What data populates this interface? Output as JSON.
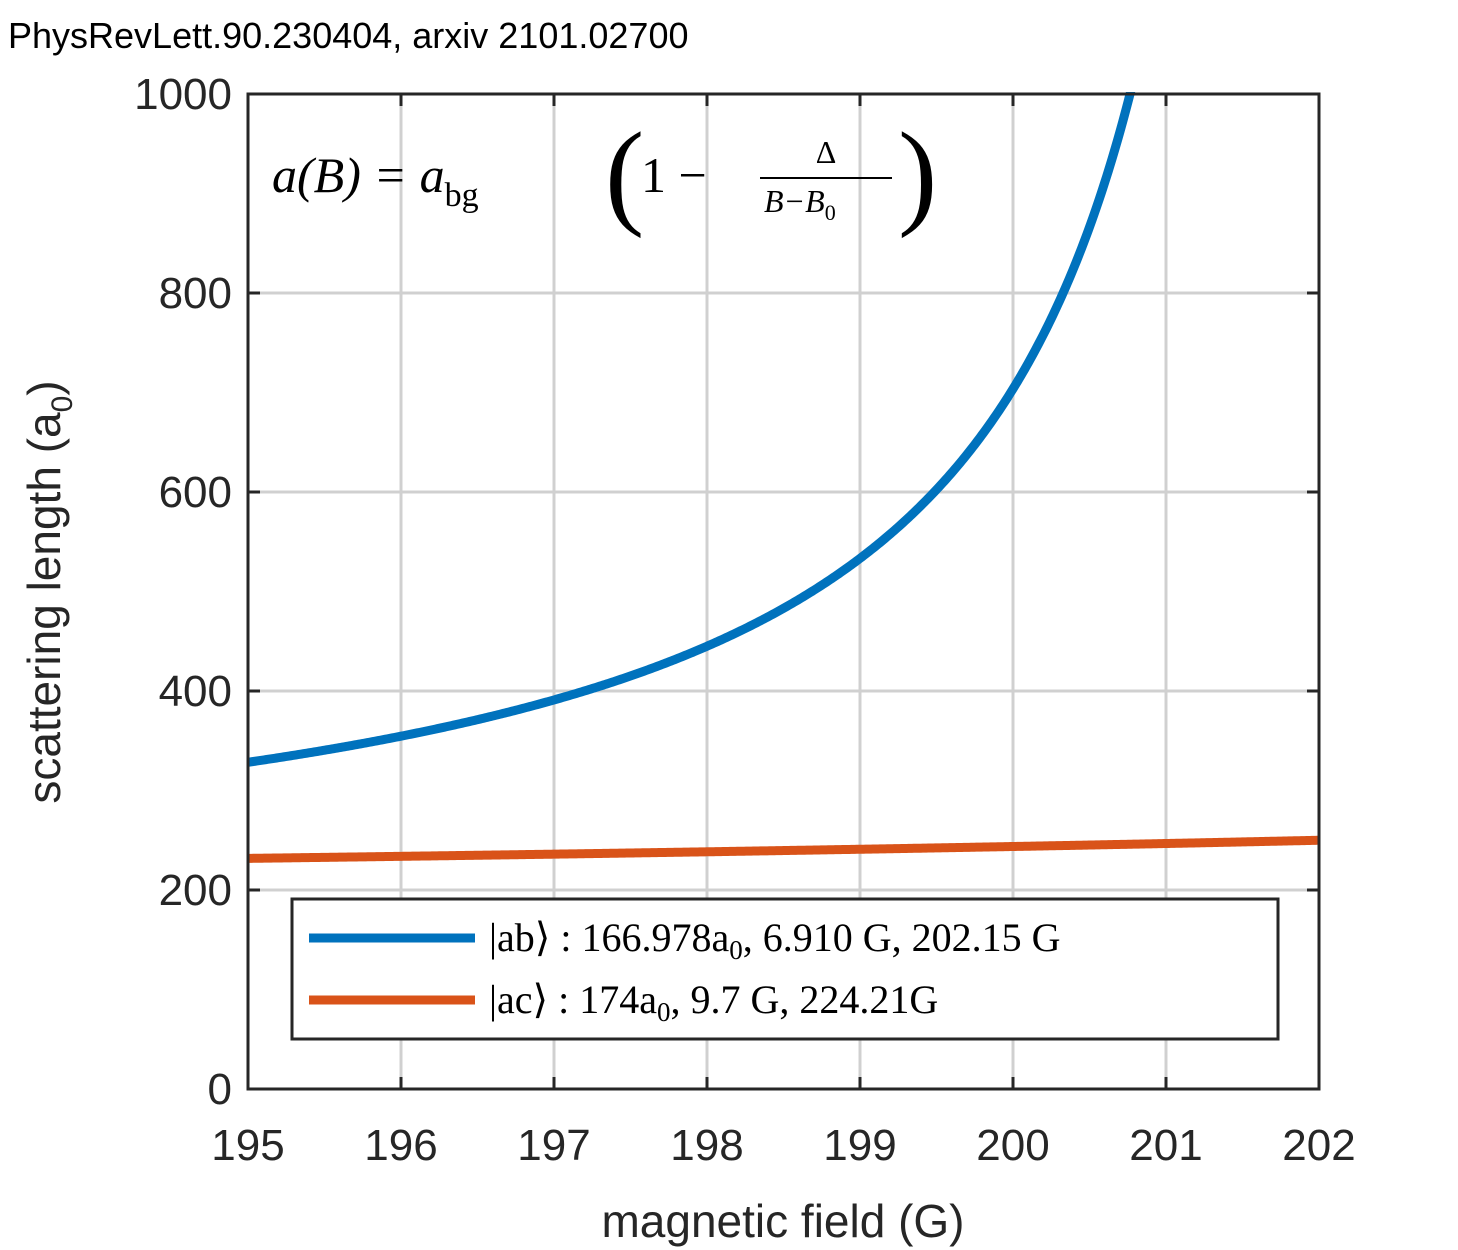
{
  "chart_data": {
    "type": "line",
    "title": "PhysRevLett.90.230404, arxiv 2101.02700",
    "xlabel": "magnetic field (G)",
    "ylabel_main": "scattering length (a",
    "ylabel_sub": "0",
    "ylabel_close": ")",
    "xlim": [
      195,
      202
    ],
    "ylim": [
      0,
      1000
    ],
    "xticks": [
      "195",
      "196",
      "197",
      "198",
      "199",
      "200",
      "201",
      "202"
    ],
    "yticks": [
      "0",
      "200",
      "400",
      "600",
      "800",
      "1000"
    ],
    "grid": true,
    "legend_placement": "bottom",
    "formula": {
      "lhs": "a(B) = a",
      "lhs_sub": "bg",
      "open": "(",
      "one_minus": "1 −",
      "numerator": "Δ",
      "denominator": "B−B",
      "denominator_sub": "0",
      "close": ")"
    },
    "series": [
      {
        "name": "|ab⟩ : 166.978a₀, 6.910 G, 202.15 G",
        "legend_label": "|ab⟩ : 166.978a",
        "legend_label_sub": "0",
        "legend_label_rest": ",  6.910 G,  202.15 G",
        "color": "#0072BD",
        "a_bg": 166.978,
        "delta": 6.91,
        "B0": 202.15,
        "x": [
          195.0,
          196.0,
          197.0,
          198.0,
          199.0,
          199.5,
          200.0,
          200.3,
          200.5,
          200.7,
          200.76
        ],
        "y": [
          328,
          353,
          390,
          445,
          533,
          603,
          704,
          789,
          859,
          955,
          1000
        ]
      },
      {
        "name": "|ac⟩ : 174a₀, 9.7 G, 224.21G",
        "legend_label": "|ac⟩ : 174a",
        "legend_label_sub": "0",
        "legend_label_rest": ",  9.7 G,  224.21G",
        "color": "#D95319",
        "a_bg": 174,
        "delta": 9.7,
        "B0": 224.21,
        "x": [
          195.0,
          196.0,
          197.0,
          198.0,
          199.0,
          200.0,
          201.0,
          202.0
        ],
        "y": [
          232,
          234,
          236,
          238,
          241,
          244,
          247,
          250
        ]
      }
    ]
  }
}
